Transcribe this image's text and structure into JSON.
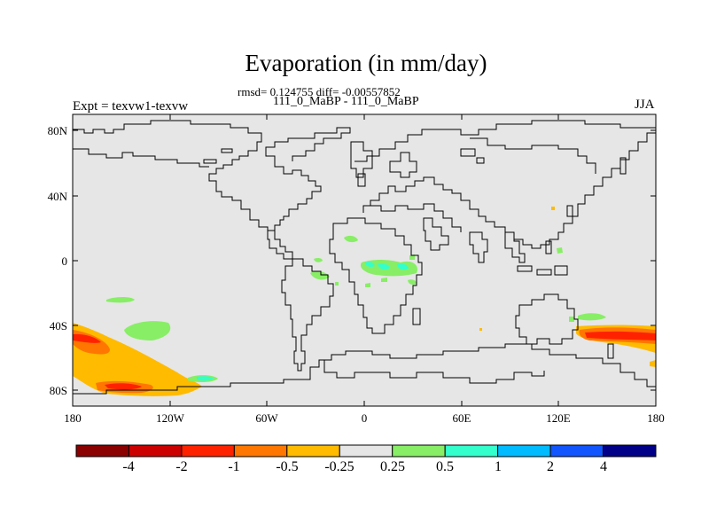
{
  "header": {
    "title": "Evaporation (in mm/day)",
    "stats": "rmsd= 0.124755 diff= -0.00557852",
    "subtitle": "111_0_MaBP - 111_0_MaBP",
    "left_label": "Expt = texvw1-texvw",
    "right_label": "JJA"
  },
  "axes": {
    "y_ticks": [
      "80N",
      "40N",
      "0",
      "40S",
      "80S"
    ],
    "x_ticks": [
      "180",
      "120W",
      "60W",
      "0",
      "60E",
      "120E",
      "180"
    ]
  },
  "colorbar": {
    "labels": [
      "-4",
      "-2",
      "-1",
      "-0.5",
      "-0.25",
      "0.25",
      "0.5",
      "1",
      "2",
      "4"
    ],
    "colors": [
      "#8b0000",
      "#cc0000",
      "#ff2200",
      "#ff7700",
      "#ffbb00",
      "#e6e6e6",
      "#88ee66",
      "#33ffcc",
      "#00bbff",
      "#1155ff",
      "#000088"
    ]
  },
  "colors": {
    "background": "#e6e6e6",
    "coastline": "#000000"
  },
  "chart_data": {
    "type": "heatmap",
    "title": "Evaporation (in mm/day)",
    "subtitle": "111_0_MaBP - 111_0_MaBP",
    "season": "JJA",
    "x_range": [
      -180,
      180
    ],
    "y_range": [
      -90,
      90
    ],
    "x_ticks": [
      -180,
      -120,
      -60,
      0,
      60,
      120,
      180
    ],
    "y_ticks": [
      80,
      40,
      0,
      -40,
      -80
    ],
    "levels": [
      -4,
      -2,
      -1,
      -0.5,
      -0.25,
      0.25,
      0.5,
      1,
      2,
      4
    ]
  }
}
